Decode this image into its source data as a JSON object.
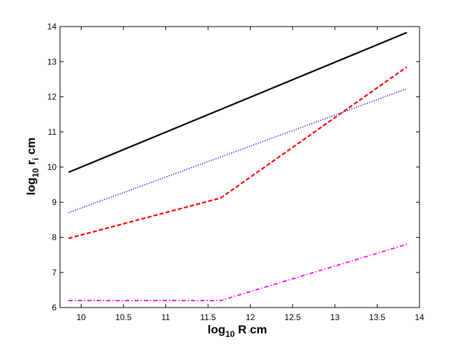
{
  "chart_data": {
    "type": "line",
    "xlabel": {
      "base": "log",
      "sub": "10",
      "rest": " R cm"
    },
    "ylabel": {
      "base": "log",
      "sub": "10",
      "mid": " r",
      "sub2": "i",
      "rest": " cm"
    },
    "xlim": [
      9.75,
      14
    ],
    "ylim": [
      6,
      14
    ],
    "xticks": [
      10,
      10.5,
      11,
      11.5,
      12,
      12.5,
      13,
      13.5,
      14
    ],
    "xtick_labels": [
      "10",
      "10.5",
      "11",
      "11.5",
      "12",
      "12.5",
      "13",
      "13.5",
      "14"
    ],
    "yticks": [
      6,
      7,
      8,
      9,
      10,
      11,
      12,
      13,
      14
    ],
    "ytick_labels": [
      "6",
      "7",
      "8",
      "9",
      "10",
      "11",
      "12",
      "13",
      "14"
    ],
    "grid": false,
    "legend": "none",
    "series": [
      {
        "color": "#000000",
        "style": "solid",
        "x": [
          9.85,
          13.85
        ],
        "y": [
          9.85,
          13.83
        ]
      },
      {
        "color": "#0000ff",
        "style": "dotted",
        "x": [
          9.85,
          13.85
        ],
        "y": [
          8.7,
          12.23
        ]
      },
      {
        "color": "#ff0000",
        "style": "dashed",
        "x": [
          9.85,
          11.65,
          13.85
        ],
        "y": [
          7.97,
          9.12,
          12.85
        ]
      },
      {
        "color": "#ff00ff",
        "style": "dashdot",
        "x": [
          9.85,
          11.65,
          13.85
        ],
        "y": [
          6.2,
          6.2,
          7.8
        ]
      }
    ]
  }
}
